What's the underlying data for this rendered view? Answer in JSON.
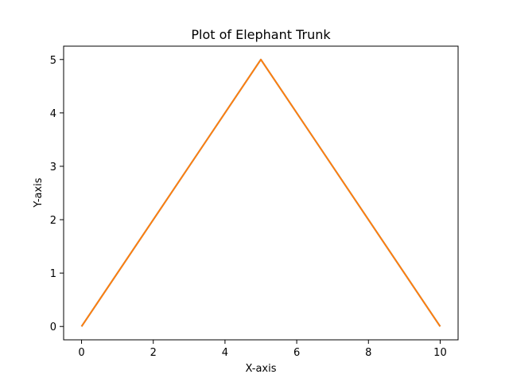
{
  "chart_data": {
    "type": "line",
    "title": "Plot of Elephant Trunk",
    "xlabel": "X-axis",
    "ylabel": "Y-axis",
    "xlim": [
      -0.5,
      10.5
    ],
    "ylim": [
      -0.25,
      5.25
    ],
    "xticks": [
      0,
      2,
      4,
      6,
      8,
      10
    ],
    "yticks": [
      0,
      1,
      2,
      3,
      4,
      5
    ],
    "grid": false,
    "series": [
      {
        "color": "#1f77b4",
        "x": [
          0,
          5,
          10
        ],
        "y": [
          0,
          5,
          0
        ]
      },
      {
        "color": "#ff7f0e",
        "x": [
          0,
          5,
          10
        ],
        "y": [
          0,
          5,
          0
        ]
      }
    ]
  }
}
